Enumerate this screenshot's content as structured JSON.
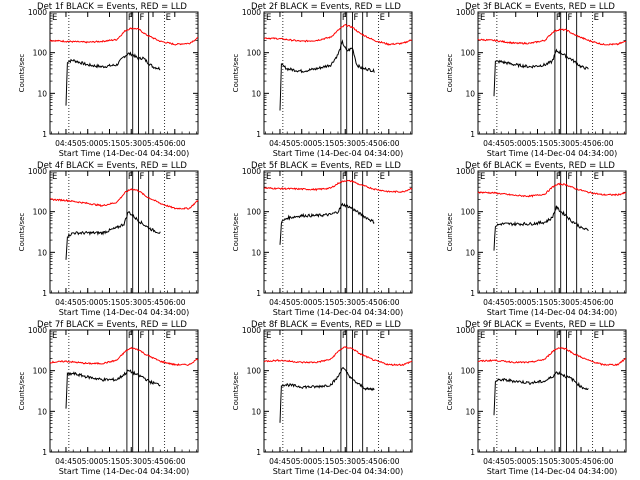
{
  "figure": {
    "y_axis_label": "Counts/sec",
    "x_axis_label": "Start Time (14-Dec-04 04:34:00)",
    "x_tick_labels": [
      "04:45",
      "05:00",
      "05:15",
      "05:30",
      "05:45",
      "06:00"
    ],
    "y_tick_labels": [
      "1",
      "10",
      "100",
      "1000"
    ],
    "marker_labels": [
      "E",
      "F",
      "F",
      "E"
    ],
    "colors": {
      "events": "#000000",
      "lld": "#ff0000",
      "markers": "#000000"
    }
  },
  "chart_data": [
    {
      "type": "line",
      "title": "Det 1f BLACK = Events, RED = LLD",
      "xlabel": "Start Time (14-Dec-04 04:34:00)",
      "ylabel": "Counts/sec",
      "y_scale": "log",
      "ylim": [
        1,
        1000
      ],
      "xlim": [
        "04:34",
        "06:16"
      ],
      "markers": {
        "E": [
          "04:47",
          "05:53"
        ],
        "F": [
          "05:27",
          "05:35"
        ],
        "vlines": [
          "05:27",
          "05:31",
          "05:35",
          "05:42"
        ]
      },
      "series": [
        {
          "name": "BLACK = Events",
          "x": [
            "04:45",
            "04:46",
            "04:50",
            "05:00",
            "05:10",
            "05:20",
            "05:25",
            "05:28",
            "05:31",
            "05:35",
            "05:38",
            "05:42",
            "05:45",
            "05:50"
          ],
          "y": [
            5,
            60,
            65,
            50,
            45,
            50,
            80,
            95,
            90,
            70,
            75,
            55,
            45,
            40
          ]
        },
        {
          "name": "RED = LLD",
          "x": [
            "04:34",
            "04:45",
            "05:00",
            "05:10",
            "05:20",
            "05:26",
            "05:30",
            "05:35",
            "05:40",
            "05:50",
            "06:00",
            "06:10",
            "06:16"
          ],
          "y": [
            200,
            190,
            180,
            190,
            210,
            350,
            400,
            380,
            280,
            190,
            160,
            170,
            230
          ]
        }
      ]
    },
    {
      "type": "line",
      "title": "Det 2f BLACK = Events, RED = LLD",
      "xlabel": "Start Time (14-Dec-04 04:34:00)",
      "ylabel": "Counts/sec",
      "y_scale": "log",
      "ylim": [
        1,
        1000
      ],
      "xlim": [
        "04:34",
        "06:16"
      ],
      "markers": {
        "E": [
          "04:47",
          "05:53"
        ],
        "F": [
          "05:27",
          "05:35"
        ],
        "vlines": [
          "05:27",
          "05:31",
          "05:35",
          "05:42"
        ]
      },
      "series": [
        {
          "name": "BLACK = Events",
          "x": [
            "04:45",
            "04:46",
            "04:50",
            "05:00",
            "05:10",
            "05:20",
            "05:25",
            "05:28",
            "05:31",
            "05:35",
            "05:38",
            "05:42",
            "05:45",
            "05:50"
          ],
          "y": [
            4,
            50,
            40,
            35,
            40,
            50,
            90,
            180,
            110,
            130,
            50,
            40,
            40,
            35
          ]
        },
        {
          "name": "RED = LLD",
          "x": [
            "04:34",
            "04:45",
            "05:00",
            "05:10",
            "05:20",
            "05:26",
            "05:30",
            "05:35",
            "05:40",
            "05:50",
            "06:00",
            "06:10",
            "06:16"
          ],
          "y": [
            230,
            220,
            190,
            200,
            240,
            380,
            480,
            420,
            300,
            200,
            160,
            170,
            210
          ]
        }
      ]
    },
    {
      "type": "line",
      "title": "Det 3f BLACK = Events, RED = LLD",
      "xlabel": "Start Time (14-Dec-04 04:34:00)",
      "ylabel": "Counts/sec",
      "y_scale": "log",
      "ylim": [
        1,
        1000
      ],
      "xlim": [
        "04:34",
        "06:16"
      ],
      "markers": {
        "E": [
          "04:47",
          "05:53"
        ],
        "F": [
          "05:27",
          "05:35"
        ],
        "vlines": [
          "05:27",
          "05:31",
          "05:35",
          "05:42"
        ]
      },
      "series": [
        {
          "name": "BLACK = Events",
          "x": [
            "04:45",
            "04:46",
            "04:50",
            "05:00",
            "05:10",
            "05:20",
            "05:25",
            "05:28",
            "05:31",
            "05:35",
            "05:38",
            "05:42",
            "05:45",
            "05:50"
          ],
          "y": [
            9,
            60,
            60,
            50,
            45,
            50,
            60,
            110,
            100,
            80,
            70,
            55,
            45,
            40
          ]
        },
        {
          "name": "RED = LLD",
          "x": [
            "04:34",
            "04:45",
            "05:00",
            "05:10",
            "05:20",
            "05:26",
            "05:30",
            "05:35",
            "05:40",
            "05:50",
            "06:00",
            "06:10",
            "06:16"
          ],
          "y": [
            210,
            200,
            170,
            170,
            200,
            330,
            370,
            360,
            280,
            200,
            160,
            160,
            190
          ]
        }
      ]
    },
    {
      "type": "line",
      "title": "Det 4f BLACK = Events, RED = LLD",
      "xlabel": "Start Time (14-Dec-04 04:34:00)",
      "ylabel": "Counts/sec",
      "y_scale": "log",
      "ylim": [
        1,
        1000
      ],
      "xlim": [
        "04:34",
        "06:16"
      ],
      "markers": {
        "E": [
          "04:47",
          "05:53"
        ],
        "F": [
          "05:27",
          "05:35"
        ],
        "vlines": [
          "05:27",
          "05:31",
          "05:35",
          "05:42"
        ]
      },
      "series": [
        {
          "name": "BLACK = Events",
          "x": [
            "04:45",
            "04:46",
            "04:50",
            "05:00",
            "05:10",
            "05:20",
            "05:25",
            "05:28",
            "05:31",
            "05:35",
            "05:38",
            "05:42",
            "05:45",
            "05:50"
          ],
          "y": [
            7,
            25,
            30,
            30,
            30,
            40,
            50,
            100,
            80,
            60,
            50,
            40,
            35,
            30
          ]
        },
        {
          "name": "RED = LLD",
          "x": [
            "04:34",
            "04:45",
            "05:00",
            "05:10",
            "05:20",
            "05:26",
            "05:30",
            "05:35",
            "05:40",
            "05:50",
            "06:00",
            "06:10",
            "06:16"
          ],
          "y": [
            200,
            190,
            160,
            140,
            170,
            300,
            360,
            330,
            240,
            160,
            120,
            120,
            190
          ]
        }
      ]
    },
    {
      "type": "line",
      "title": "Det 5f BLACK = Events, RED = LLD",
      "xlabel": "Start Time (14-Dec-04 04:34:00)",
      "ylabel": "Counts/sec",
      "y_scale": "log",
      "ylim": [
        1,
        1000
      ],
      "xlim": [
        "04:34",
        "06:16"
      ],
      "markers": {
        "E": [
          "04:47",
          "05:53"
        ],
        "F": [
          "05:27",
          "05:35"
        ],
        "vlines": [
          "05:27",
          "05:31",
          "05:35",
          "05:42"
        ]
      },
      "series": [
        {
          "name": "BLACK = Events",
          "x": [
            "04:45",
            "04:46",
            "04:50",
            "05:00",
            "05:10",
            "05:20",
            "05:25",
            "05:28",
            "05:31",
            "05:35",
            "05:38",
            "05:42",
            "05:45",
            "05:50"
          ],
          "y": [
            15,
            55,
            70,
            80,
            80,
            85,
            100,
            150,
            140,
            120,
            100,
            80,
            70,
            55
          ]
        },
        {
          "name": "RED = LLD",
          "x": [
            "04:34",
            "04:45",
            "05:00",
            "05:10",
            "05:20",
            "05:26",
            "05:30",
            "05:35",
            "05:40",
            "05:50",
            "06:00",
            "06:10",
            "06:16"
          ],
          "y": [
            380,
            370,
            360,
            350,
            380,
            520,
            580,
            560,
            460,
            360,
            310,
            310,
            380
          ]
        }
      ]
    },
    {
      "type": "line",
      "title": "Det 6f BLACK = Events, RED = LLD",
      "xlabel": "Start Time (14-Dec-04 04:34:00)",
      "ylabel": "Counts/sec",
      "y_scale": "log",
      "ylim": [
        1,
        1000
      ],
      "xlim": [
        "04:34",
        "06:16"
      ],
      "markers": {
        "E": [
          "04:47",
          "05:53"
        ],
        "F": [
          "05:27",
          "05:35"
        ],
        "vlines": [
          "05:27",
          "05:31",
          "05:35",
          "05:42"
        ]
      },
      "series": [
        {
          "name": "BLACK = Events",
          "x": [
            "04:45",
            "04:46",
            "04:50",
            "05:00",
            "05:10",
            "05:20",
            "05:25",
            "05:28",
            "05:31",
            "05:35",
            "05:38",
            "05:42",
            "05:45",
            "05:50"
          ],
          "y": [
            11,
            45,
            50,
            50,
            50,
            55,
            70,
            130,
            100,
            80,
            60,
            50,
            40,
            35
          ]
        },
        {
          "name": "RED = LLD",
          "x": [
            "04:34",
            "04:45",
            "05:00",
            "05:10",
            "05:20",
            "05:26",
            "05:30",
            "05:35",
            "05:40",
            "05:50",
            "06:00",
            "06:10",
            "06:16"
          ],
          "y": [
            300,
            290,
            250,
            240,
            270,
            420,
            480,
            460,
            380,
            300,
            260,
            260,
            290
          ]
        }
      ]
    },
    {
      "type": "line",
      "title": "Det 7f BLACK = Events, RED = LLD",
      "xlabel": "Start Time (14-Dec-04 04:34:00)",
      "ylabel": "Counts/sec",
      "y_scale": "log",
      "ylim": [
        1,
        1000
      ],
      "xlim": [
        "04:34",
        "06:16"
      ],
      "markers": {
        "E": [
          "04:47",
          "05:53"
        ],
        "F": [
          "05:27",
          "05:35"
        ],
        "vlines": [
          "05:27",
          "05:31",
          "05:35",
          "05:42"
        ]
      },
      "series": [
        {
          "name": "BLACK = Events",
          "x": [
            "04:45",
            "04:46",
            "04:50",
            "05:00",
            "05:10",
            "05:20",
            "05:25",
            "05:28",
            "05:31",
            "05:35",
            "05:38",
            "05:42",
            "05:45",
            "05:50"
          ],
          "y": [
            12,
            80,
            85,
            70,
            60,
            60,
            80,
            100,
            90,
            75,
            70,
            55,
            50,
            45
          ]
        },
        {
          "name": "RED = LLD",
          "x": [
            "04:34",
            "04:45",
            "05:00",
            "05:10",
            "05:20",
            "05:26",
            "05:30",
            "05:35",
            "05:40",
            "05:50",
            "06:00",
            "06:10",
            "06:16"
          ],
          "y": [
            160,
            170,
            150,
            150,
            180,
            300,
            360,
            330,
            250,
            170,
            140,
            140,
            200
          ]
        }
      ]
    },
    {
      "type": "line",
      "title": "Det 8f BLACK = Events, RED = LLD",
      "xlabel": "Start Time (14-Dec-04 04:34:00)",
      "ylabel": "Counts/sec",
      "y_scale": "log",
      "ylim": [
        1,
        1000
      ],
      "xlim": [
        "04:34",
        "06:16"
      ],
      "markers": {
        "E": [
          "04:47",
          "05:53"
        ],
        "F": [
          "05:27",
          "05:35"
        ],
        "vlines": [
          "05:27",
          "05:31",
          "05:35",
          "05:42"
        ]
      },
      "series": [
        {
          "name": "BLACK = Events",
          "x": [
            "04:45",
            "04:46",
            "04:50",
            "05:00",
            "05:10",
            "05:20",
            "05:25",
            "05:28",
            "05:31",
            "05:35",
            "05:38",
            "05:42",
            "05:45",
            "05:50"
          ],
          "y": [
            5,
            45,
            45,
            40,
            40,
            45,
            70,
            120,
            90,
            60,
            50,
            40,
            35,
            35
          ]
        },
        {
          "name": "RED = LLD",
          "x": [
            "04:34",
            "04:45",
            "05:00",
            "05:10",
            "05:20",
            "05:26",
            "05:30",
            "05:35",
            "05:40",
            "05:50",
            "06:00",
            "06:10",
            "06:16"
          ],
          "y": [
            170,
            180,
            160,
            160,
            190,
            320,
            380,
            350,
            260,
            180,
            140,
            140,
            170
          ]
        }
      ]
    },
    {
      "type": "line",
      "title": "Det 9f BLACK = Events, RED = LLD",
      "xlabel": "Start Time (14-Dec-04 04:34:00)",
      "ylabel": "Counts/sec",
      "y_scale": "log",
      "ylim": [
        1,
        1000
      ],
      "xlim": [
        "04:34",
        "06:16"
      ],
      "markers": {
        "E": [
          "04:47",
          "05:53"
        ],
        "F": [
          "05:27",
          "05:35"
        ],
        "vlines": [
          "05:27",
          "05:31",
          "05:35",
          "05:42"
        ]
      },
      "series": [
        {
          "name": "BLACK = Events",
          "x": [
            "04:45",
            "04:46",
            "04:50",
            "05:00",
            "05:10",
            "05:20",
            "05:25",
            "05:28",
            "05:31",
            "05:35",
            "05:38",
            "05:42",
            "05:45",
            "05:50"
          ],
          "y": [
            8,
            55,
            60,
            55,
            50,
            55,
            70,
            90,
            85,
            70,
            65,
            50,
            40,
            35
          ]
        },
        {
          "name": "RED = LLD",
          "x": [
            "04:34",
            "04:45",
            "05:00",
            "05:10",
            "05:20",
            "05:26",
            "05:30",
            "05:35",
            "05:40",
            "05:50",
            "06:00",
            "06:10",
            "06:16"
          ],
          "y": [
            170,
            180,
            160,
            160,
            190,
            310,
            370,
            340,
            260,
            180,
            140,
            140,
            200
          ]
        }
      ]
    }
  ]
}
